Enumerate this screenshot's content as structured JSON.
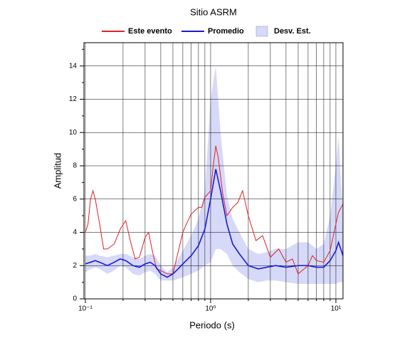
{
  "chart_data": {
    "type": "line",
    "title": "Sitio ASRM",
    "xlabel": "Periodo (s)",
    "ylabel": "Amplitud",
    "xscale": "log",
    "grid": true,
    "legend": "top",
    "xlim": [
      0.0975,
      11.4
    ],
    "ylim": [
      0,
      15.4
    ],
    "xticks": [
      {
        "value": 0.1,
        "label": "10⁻¹"
      },
      {
        "value": 1,
        "label": "10⁰"
      },
      {
        "value": 10,
        "label": "10¹"
      }
    ],
    "x_minor_ticks": [
      0.2,
      0.3,
      0.4,
      0.5,
      0.6,
      0.7,
      0.8,
      0.9,
      2,
      3,
      4,
      5,
      6,
      7,
      8,
      9
    ],
    "yticks": [
      0,
      2,
      4,
      6,
      8,
      10,
      12,
      14
    ],
    "y_minor_ticks": [
      1,
      3,
      5,
      7,
      9,
      11,
      13,
      15
    ],
    "series": [
      {
        "name": "Este evento",
        "color": "#e02028",
        "x": [
          0.1,
          0.105,
          0.11,
          0.115,
          0.12,
          0.13,
          0.14,
          0.15,
          0.17,
          0.19,
          0.21,
          0.23,
          0.25,
          0.27,
          0.3,
          0.32,
          0.34,
          0.37,
          0.4,
          0.45,
          0.5,
          0.55,
          0.6,
          0.65,
          0.7,
          0.8,
          0.85,
          0.9,
          1.0,
          1.05,
          1.1,
          1.15,
          1.25,
          1.35,
          1.5,
          1.65,
          1.8,
          2.0,
          2.3,
          2.6,
          3.0,
          3.5,
          4,
          4.5,
          5,
          6,
          6.5,
          7,
          8,
          9,
          10,
          10.5,
          11.4
        ],
        "values": [
          4.0,
          4.5,
          6.0,
          6.5,
          6.0,
          4.5,
          3.0,
          3.0,
          3.3,
          4.2,
          4.7,
          3.4,
          2.4,
          2.5,
          3.7,
          4.0,
          3.0,
          1.8,
          1.7,
          1.5,
          1.5,
          2.8,
          4.0,
          4.6,
          5.1,
          5.5,
          5.5,
          6.1,
          6.5,
          8.0,
          9.2,
          8.5,
          6.3,
          5.0,
          5.5,
          5.8,
          6.5,
          5.0,
          3.5,
          3.8,
          2.5,
          3.0,
          2.2,
          2.4,
          1.5,
          2.0,
          2.6,
          2.3,
          2.2,
          2.9,
          4.5,
          5.2,
          5.7
        ]
      },
      {
        "name": "Promedio",
        "color": "#1a1ad8",
        "x": [
          0.1,
          0.11,
          0.12,
          0.13,
          0.15,
          0.17,
          0.19,
          0.21,
          0.24,
          0.27,
          0.3,
          0.33,
          0.36,
          0.4,
          0.45,
          0.5,
          0.55,
          0.6,
          0.7,
          0.8,
          0.9,
          1.0,
          1.1,
          1.2,
          1.35,
          1.5,
          1.7,
          2.0,
          2.4,
          2.8,
          3.3,
          4,
          5,
          6,
          7,
          8,
          9,
          10,
          10.5,
          11.4
        ],
        "values": [
          2.1,
          2.2,
          2.3,
          2.2,
          2.0,
          2.2,
          2.4,
          2.3,
          2.0,
          1.9,
          2.1,
          2.2,
          2.0,
          1.5,
          1.3,
          1.5,
          1.8,
          2.1,
          2.6,
          3.2,
          4.2,
          6.0,
          7.8,
          6.5,
          4.5,
          3.3,
          2.7,
          2.0,
          1.8,
          1.9,
          2.0,
          1.9,
          2.0,
          2.0,
          1.9,
          1.9,
          2.3,
          2.9,
          3.4,
          2.6
        ]
      },
      {
        "name": "Desv. Est.",
        "color": "#d6d9f8",
        "kind": "band",
        "x": [
          0.1,
          0.11,
          0.12,
          0.13,
          0.15,
          0.17,
          0.19,
          0.21,
          0.24,
          0.27,
          0.3,
          0.33,
          0.36,
          0.4,
          0.45,
          0.5,
          0.55,
          0.6,
          0.7,
          0.8,
          0.9,
          1.0,
          1.1,
          1.2,
          1.35,
          1.5,
          1.7,
          2.0,
          2.4,
          2.8,
          3.3,
          4,
          5,
          6,
          7,
          8,
          9,
          10,
          10.5,
          11.4
        ],
        "upper": [
          2.6,
          2.6,
          2.7,
          2.6,
          2.5,
          2.6,
          2.7,
          2.7,
          2.5,
          2.4,
          2.6,
          2.7,
          2.6,
          2.0,
          1.6,
          1.9,
          2.4,
          2.9,
          3.8,
          4.8,
          6.5,
          12.0,
          14.0,
          10.0,
          6.2,
          4.8,
          4.0,
          3.0,
          2.7,
          2.8,
          3.0,
          3.0,
          3.4,
          3.4,
          3.0,
          3.3,
          5.0,
          8.0,
          9.8,
          5.0
        ],
        "lower": [
          1.6,
          1.8,
          1.9,
          1.8,
          1.5,
          1.7,
          2.0,
          1.9,
          1.5,
          1.4,
          1.6,
          1.7,
          1.5,
          1.1,
          1.1,
          1.1,
          1.2,
          1.3,
          1.5,
          1.7,
          2.0,
          2.2,
          3.0,
          3.0,
          2.7,
          2.0,
          1.6,
          1.2,
          1.0,
          1.1,
          1.1,
          1.0,
          0.9,
          0.9,
          0.9,
          0.9,
          0.9,
          0.9,
          1.0,
          1.0
        ]
      }
    ]
  }
}
